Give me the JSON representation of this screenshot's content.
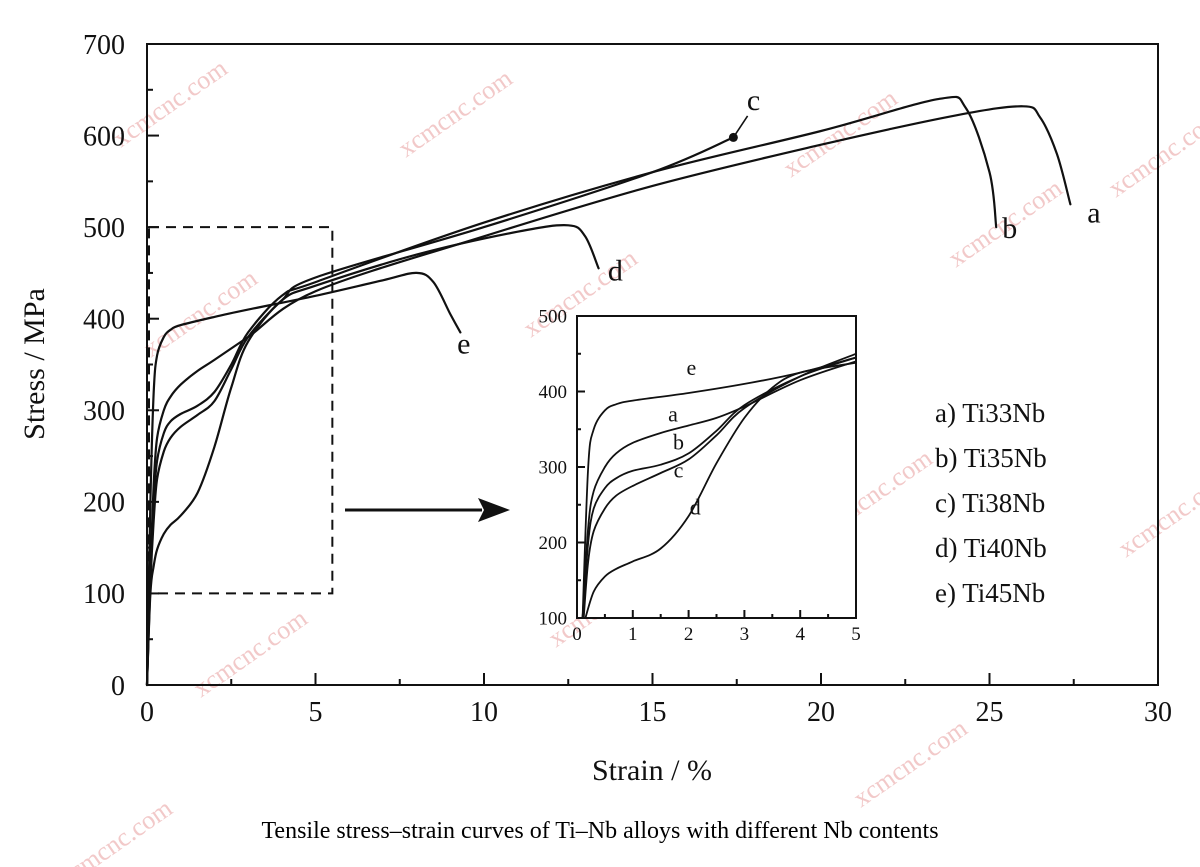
{
  "caption": "Tensile stress–strain curves of Ti–Nb alloys with different Nb contents",
  "watermark": "xcmcnc.com",
  "colors": {
    "line": "#111111",
    "axis": "#111111",
    "watermark": "#f2c9c9"
  },
  "chart_data": [
    {
      "type": "line",
      "title": "",
      "xlabel": "Strain / %",
      "ylabel": "Stress / MPa",
      "xlim": [
        0,
        30
      ],
      "ylim": [
        0,
        700
      ],
      "xticks": [
        0,
        5,
        10,
        15,
        20,
        25,
        30
      ],
      "yticks": [
        0,
        100,
        200,
        300,
        400,
        500,
        600,
        700
      ],
      "grid": false,
      "legend_position": "right",
      "legend": [
        "a) Ti33Nb",
        "b) Ti35Nb",
        "c) Ti38Nb",
        "d) Ti40Nb",
        "e) Ti45Nb"
      ],
      "zoom_box": {
        "x": [
          0,
          5.5
        ],
        "y": [
          100,
          500
        ]
      },
      "series": [
        {
          "name": "a",
          "x": [
            0,
            0.1,
            0.2,
            0.3,
            0.5,
            0.7,
            1,
            1.5,
            2,
            3,
            5,
            10,
            15,
            20,
            24,
            26,
            26.5,
            27,
            27.4
          ],
          "y": [
            0,
            130,
            220,
            270,
            300,
            315,
            328,
            343,
            355,
            380,
            430,
            490,
            545,
            590,
            622,
            632,
            620,
            580,
            525
          ]
        },
        {
          "name": "b",
          "x": [
            0,
            0.1,
            0.2,
            0.3,
            0.5,
            0.7,
            1,
            1.5,
            2,
            2.5,
            3,
            4,
            5,
            10,
            15,
            20,
            23.5,
            24.3,
            25,
            25.2
          ],
          "y": [
            0,
            120,
            200,
            245,
            275,
            288,
            296,
            305,
            320,
            350,
            385,
            425,
            440,
            505,
            560,
            605,
            640,
            630,
            560,
            500
          ]
        },
        {
          "name": "c",
          "x": [
            0,
            0.1,
            0.2,
            0.3,
            0.5,
            0.7,
            1,
            1.5,
            2,
            2.5,
            3,
            4,
            5,
            10,
            15,
            17.4
          ],
          "y": [
            0,
            110,
            180,
            225,
            255,
            270,
            282,
            295,
            310,
            345,
            380,
            420,
            445,
            500,
            560,
            598
          ]
        },
        {
          "name": "d",
          "x": [
            0,
            0.1,
            0.2,
            0.3,
            0.5,
            0.7,
            1,
            1.5,
            2,
            2.5,
            3,
            4,
            5,
            8,
            11,
            12.5,
            13,
            13.4
          ],
          "y": [
            0,
            100,
            130,
            148,
            165,
            175,
            185,
            210,
            260,
            325,
            375,
            420,
            436,
            470,
            495,
            502,
            490,
            455
          ]
        },
        {
          "name": "e",
          "x": [
            0,
            0.1,
            0.2,
            0.3,
            0.5,
            0.7,
            1,
            2,
            3,
            5,
            7,
            8,
            8.5,
            9,
            9.3
          ],
          "y": [
            0,
            200,
            320,
            360,
            380,
            388,
            393,
            402,
            410,
            425,
            442,
            450,
            440,
            405,
            385
          ]
        }
      ],
      "end_marker": {
        "series": "c",
        "x": 17.4,
        "y": 598
      }
    },
    {
      "type": "line",
      "title": "",
      "xlabel": "",
      "ylabel": "",
      "xlim": [
        0,
        5
      ],
      "ylim": [
        100,
        500
      ],
      "xticks": [
        0,
        1,
        2,
        3,
        4,
        5
      ],
      "yticks": [
        100,
        200,
        300,
        400,
        500
      ],
      "grid": false,
      "series": [
        {
          "name": "a",
          "x": [
            0.1,
            0.2,
            0.3,
            0.5,
            0.7,
            1,
            1.5,
            2,
            2.5,
            3,
            4,
            5
          ],
          "y": [
            100,
            220,
            268,
            300,
            318,
            332,
            345,
            355,
            365,
            380,
            415,
            440
          ]
        },
        {
          "name": "b",
          "x": [
            0.1,
            0.2,
            0.3,
            0.5,
            0.7,
            1,
            1.5,
            2,
            2.5,
            3,
            4,
            5
          ],
          "y": [
            100,
            200,
            245,
            272,
            285,
            295,
            303,
            318,
            348,
            382,
            420,
            445
          ]
        },
        {
          "name": "c",
          "x": [
            0.12,
            0.2,
            0.3,
            0.5,
            0.7,
            1,
            1.5,
            2,
            2.5,
            3,
            4,
            5
          ],
          "y": [
            100,
            175,
            215,
            245,
            262,
            275,
            292,
            310,
            342,
            378,
            420,
            450
          ]
        },
        {
          "name": "d",
          "x": [
            0.15,
            0.3,
            0.5,
            0.7,
            1,
            1.5,
            2,
            2.5,
            3,
            3.5,
            4,
            5
          ],
          "y": [
            100,
            135,
            155,
            165,
            175,
            192,
            235,
            305,
            365,
            405,
            425,
            438
          ]
        },
        {
          "name": "e",
          "x": [
            0.1,
            0.2,
            0.3,
            0.5,
            0.7,
            1,
            2,
            3,
            4,
            5
          ],
          "y": [
            100,
            300,
            350,
            375,
            383,
            388,
            398,
            410,
            425,
            445
          ]
        }
      ],
      "curve_labels": [
        {
          "series": "e",
          "text": "e",
          "x": 2.05,
          "y": 422
        },
        {
          "series": "a",
          "text": "a",
          "x": 1.72,
          "y": 360
        },
        {
          "series": "b",
          "text": "b",
          "x": 1.82,
          "y": 323
        },
        {
          "series": "c",
          "text": "c",
          "x": 1.82,
          "y": 286
        },
        {
          "series": "d",
          "text": "d",
          "x": 2.12,
          "y": 237
        }
      ]
    }
  ],
  "main_curve_labels": [
    {
      "series": "a",
      "text": "a",
      "x": 28.1,
      "y": 505
    },
    {
      "series": "b",
      "text": "b",
      "x": 25.6,
      "y": 488
    },
    {
      "series": "c",
      "text": "c",
      "x": 18.0,
      "y": 628
    },
    {
      "series": "d",
      "text": "d",
      "x": 13.9,
      "y": 442
    },
    {
      "series": "e",
      "text": "e",
      "x": 9.4,
      "y": 362
    }
  ]
}
